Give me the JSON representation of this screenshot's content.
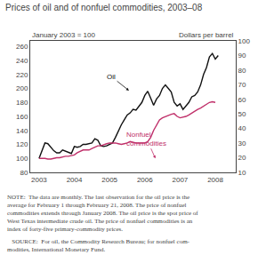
{
  "chart_data": {
    "type": "line",
    "title": "Prices of oil and of nonfuel commodities, 2003–08",
    "ylabel": "January 2003 = 100",
    "y2label": "Dollars per barrel",
    "xlim": [
      2002.75,
      2008.58
    ],
    "xticks": [
      2003,
      2004,
      2005,
      2006,
      2007,
      2008
    ],
    "ylim": [
      80,
      268
    ],
    "yticks": [
      80,
      100,
      120,
      140,
      160,
      180,
      200,
      220,
      240,
      260
    ],
    "y2lim": [
      10,
      100
    ],
    "y2ticks": [
      10,
      20,
      30,
      40,
      50,
      60,
      70,
      80,
      90,
      100
    ],
    "grid": false,
    "series": [
      {
        "color": "#111111",
        "x": [
          2003.0,
          2003.083,
          2003.167,
          2003.25,
          2003.333,
          2003.417,
          2003.5,
          2003.583,
          2003.667,
          2003.75,
          2003.833,
          2003.917,
          2004.0,
          2004.083,
          2004.167,
          2004.25,
          2004.333,
          2004.417,
          2004.5,
          2004.583,
          2004.667,
          2004.75,
          2004.833,
          2004.917,
          2005.0,
          2005.083,
          2005.167,
          2005.25,
          2005.333,
          2005.417,
          2005.5,
          2005.583,
          2005.667,
          2005.75,
          2005.833,
          2005.917,
          2006.0,
          2006.083,
          2006.167,
          2006.25,
          2006.333,
          2006.417,
          2006.5,
          2006.583,
          2006.667,
          2006.75,
          2006.833,
          2006.917,
          2007.0,
          2007.083,
          2007.167,
          2007.25,
          2007.333,
          2007.417,
          2007.5,
          2007.583,
          2007.667,
          2007.75,
          2007.833,
          2007.917,
          2008.0,
          2008.083
        ],
        "values": [
          100,
          112,
          122,
          121,
          116,
          111,
          108,
          108,
          112,
          110,
          108,
          107,
          117,
          116,
          117,
          120,
          120,
          121,
          122,
          128,
          126,
          118,
          117,
          118,
          120,
          122,
          130,
          140,
          148,
          155,
          162,
          165,
          170,
          169,
          175,
          180,
          190,
          196,
          186,
          176,
          185,
          190,
          200,
          205,
          200,
          195,
          180,
          175,
          178,
          170,
          175,
          180,
          188,
          190,
          195,
          205,
          220,
          230,
          245,
          250,
          242,
          247
        ]
      },
      {
        "color": "#c0306a",
        "x": [
          2003.0,
          2003.083,
          2003.167,
          2003.25,
          2003.333,
          2003.417,
          2003.5,
          2003.583,
          2003.667,
          2003.75,
          2003.833,
          2003.917,
          2004.0,
          2004.083,
          2004.167,
          2004.25,
          2004.333,
          2004.417,
          2004.5,
          2004.583,
          2004.667,
          2004.75,
          2004.833,
          2004.917,
          2005.0,
          2005.083,
          2005.167,
          2005.25,
          2005.333,
          2005.417,
          2005.5,
          2005.583,
          2005.667,
          2005.75,
          2005.833,
          2005.917,
          2006.0,
          2006.083,
          2006.167,
          2006.25,
          2006.333,
          2006.417,
          2006.5,
          2006.583,
          2006.667,
          2006.75,
          2006.833,
          2006.917,
          2007.0,
          2007.083,
          2007.167,
          2007.25,
          2007.333,
          2007.417,
          2007.5,
          2007.583,
          2007.667,
          2007.75,
          2007.833,
          2007.917,
          2008.0
        ],
        "values": [
          100,
          100,
          100,
          99,
          99,
          100,
          101,
          101,
          102,
          103,
          103,
          104,
          105,
          108,
          110,
          112,
          112,
          112,
          114,
          116,
          118,
          118,
          120,
          121,
          122,
          122,
          122,
          121,
          120,
          121,
          122,
          124,
          123,
          122,
          122,
          122,
          122,
          124,
          130,
          140,
          148,
          155,
          158,
          160,
          162,
          163,
          164,
          160,
          158,
          159,
          160,
          162,
          165,
          168,
          170,
          172,
          175,
          178,
          180,
          181,
          180
        ]
      }
    ],
    "annotations": [
      {
        "text": "Oil",
        "x": 2005.55,
        "y": 197,
        "text_x": 2005.05,
        "text_y": 217,
        "color": "#111111"
      },
      {
        "text": "Nonfuel\ncommodities",
        "x": 2006.3,
        "y": 100,
        "text_x": 2006.05,
        "text_y": 128,
        "color": "#c0306a"
      }
    ],
    "note": [
      "NOTE:  The data are monthly. The last observation for the oil price is the",
      "average for February 1 through February 21, 2008. The price of nonfuel",
      "commodities extends through January 2008. The oil price is the spot price of",
      "West Texas intermediate crude oil. The price of nonfuel commodities is an",
      "index of forty-five primary-commodity prices."
    ],
    "source": [
      "   SOURCE:  For oil, the Commodity Research Bureau; for nonfuel com-",
      "modities, International Monetary Fund."
    ]
  }
}
